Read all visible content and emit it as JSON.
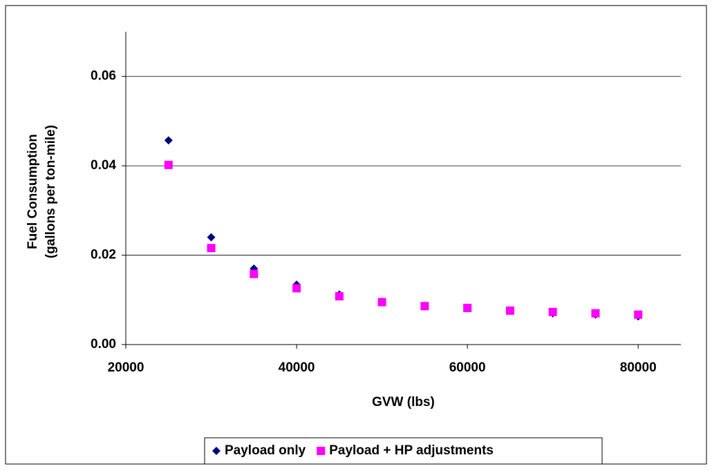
{
  "chart_data": {
    "type": "scatter",
    "x_label": "GVW (lbs)",
    "y_label": [
      "Fuel Consumption",
      "(gallons per ton-mile)"
    ],
    "xlim": [
      20000,
      85000
    ],
    "xticks": [
      20000,
      40000,
      60000,
      80000
    ],
    "ylim": [
      0,
      0.07
    ],
    "yticks": [
      {
        "value": 0,
        "label": "0.00"
      },
      0.02,
      0.04,
      0.06
    ],
    "grid": true,
    "legend": "bottom",
    "x": [
      25000,
      30000,
      35000,
      40000,
      45000,
      50000,
      55000,
      60000,
      65000,
      70000,
      75000,
      80000
    ],
    "series": [
      {
        "name": "Payload only",
        "color": "#000080",
        "marker": "diamond",
        "values": [
          0.0457,
          0.024,
          0.017,
          0.0134,
          0.0112,
          0.0096,
          0.0087,
          0.0081,
          0.0076,
          0.007,
          0.0067,
          0.0063
        ]
      },
      {
        "name": "Payload + HP adjustments",
        "color": "#ff00ff",
        "marker": "square",
        "values": [
          0.0402,
          0.0216,
          0.0158,
          0.0126,
          0.0108,
          0.0095,
          0.0086,
          0.0082,
          0.0076,
          0.0073,
          0.007,
          0.0067
        ]
      }
    ]
  }
}
